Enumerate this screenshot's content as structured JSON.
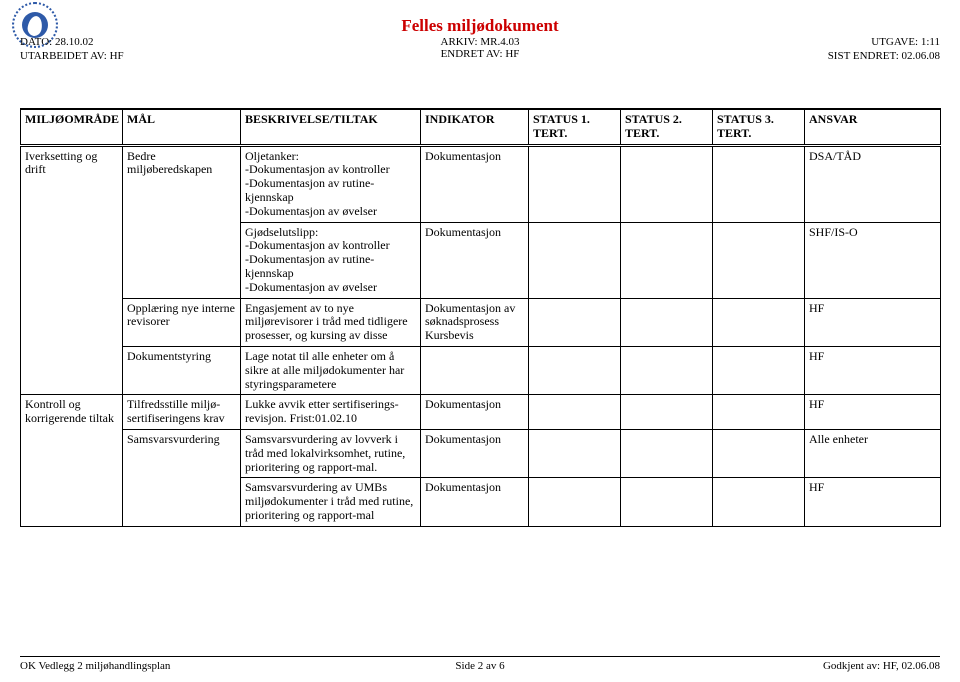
{
  "colors": {
    "title": "#cc0000",
    "text": "#000000",
    "logo_ring": "#2e5aa8",
    "logo_fill": "#2e5aa8",
    "background": "#ffffff",
    "border": "#000000"
  },
  "header": {
    "main_title": "Felles miljødokument",
    "arkiv": "ARKIV: MR.4.03",
    "endret_av": "ENDRET AV: HF",
    "meta_left": {
      "dato": "DATO: 28.10.02",
      "utarbeidet": "UTARBEIDET AV: HF"
    },
    "meta_right": {
      "utgave": "UTGAVE: 1:11",
      "sist_endret": "SIST ENDRET: 02.06.08"
    }
  },
  "table": {
    "columns": [
      "MILJØOMRÅDE",
      "MÅL",
      "BESKRIVELSE/TILTAK",
      "INDIKATOR",
      "STATUS 1. TERT.",
      "STATUS 2. TERT.",
      "STATUS 3. TERT.",
      "ANSVAR"
    ],
    "rows": [
      {
        "miljoomrade": "Iverksetting og drift",
        "mal": "Bedre miljøberedskapen",
        "beskrivelse": "Oljetanker:\n-Dokumentasjon av kontroller\n-Dokumentasjon av rutine-kjennskap\n-Dokumentasjon av øvelser",
        "indikator": "Dokumentasjon",
        "s1": "",
        "s2": "",
        "s3": "",
        "ansvar": "DSA/TÅD"
      },
      {
        "miljoomrade": "",
        "mal": "",
        "beskrivelse": "Gjødselutslipp:\n-Dokumentasjon av kontroller\n-Dokumentasjon av rutine-kjennskap\n-Dokumentasjon av øvelser",
        "indikator": "Dokumentasjon",
        "s1": "",
        "s2": "",
        "s3": "",
        "ansvar": "SHF/IS-O"
      },
      {
        "miljoomrade": "",
        "mal": "Opplæring nye interne revisorer",
        "beskrivelse": "Engasjement av to nye miljørevisorer i tråd med tidligere prosesser, og kursing av disse",
        "indikator": "Dokumentasjon av søknadsprosess Kursbevis",
        "s1": "",
        "s2": "",
        "s3": "",
        "ansvar": "HF"
      },
      {
        "miljoomrade": "",
        "mal": "Dokumentstyring",
        "beskrivelse": "Lage notat til alle enheter om å sikre at alle miljødokumenter har styringsparametere",
        "indikator": "",
        "s1": "",
        "s2": "",
        "s3": "",
        "ansvar": "HF"
      },
      {
        "miljoomrade": "Kontroll og korrigerende tiltak",
        "mal": "Tilfredsstille miljø-sertifiseringens krav",
        "beskrivelse": "Lukke avvik etter sertifiserings-revisjon. Frist:01.02.10",
        "indikator": "Dokumentasjon",
        "s1": "",
        "s2": "",
        "s3": "",
        "ansvar": "HF"
      },
      {
        "miljoomrade": "",
        "mal": "Samsvarsvurdering",
        "beskrivelse": "Samsvarsvurdering av lovverk i tråd med lokalvirksomhet, rutine, prioritering og rapport-mal.",
        "indikator": "Dokumentasjon",
        "s1": "",
        "s2": "",
        "s3": "",
        "ansvar": "Alle enheter"
      },
      {
        "miljoomrade": "",
        "mal": "",
        "beskrivelse": "Samsvarsvurdering av UMBs miljødokumenter i tråd med rutine, prioritering og rapport-mal",
        "indikator": "Dokumentasjon",
        "s1": "",
        "s2": "",
        "s3": "",
        "ansvar": "HF"
      }
    ]
  },
  "footer": {
    "left": "OK Vedlegg 2 miljøhandlingsplan",
    "center": "Side 2 av 6",
    "right": "Godkjent av: HF, 02.06.08"
  }
}
